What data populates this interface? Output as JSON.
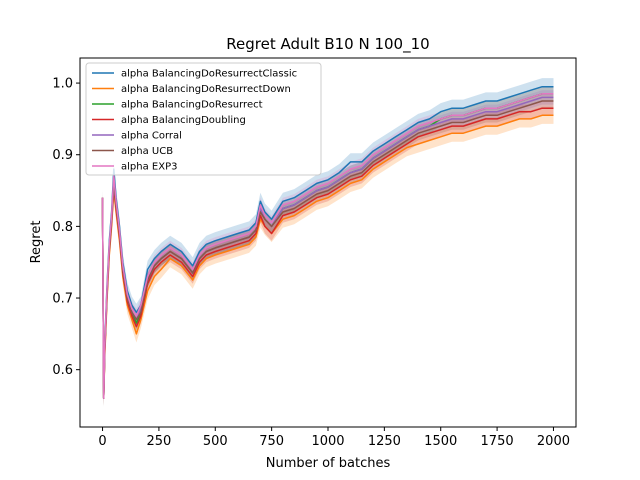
{
  "chart_data": {
    "type": "line",
    "title": "Regret Adult B10 N 100_10",
    "xlabel": "Number of batches",
    "ylabel": "Regret",
    "xlim": [
      -100,
      2100
    ],
    "ylim": [
      0.52,
      1.035
    ],
    "xticks": [
      0,
      250,
      500,
      750,
      1000,
      1250,
      1500,
      1750,
      2000
    ],
    "xtick_labels": [
      "0",
      "250",
      "500",
      "750",
      "1000",
      "1250",
      "1500",
      "1750",
      "2000"
    ],
    "yticks": [
      0.6,
      0.7,
      0.8,
      0.9,
      1.0
    ],
    "ytick_labels": [
      "0.6",
      "0.7",
      "0.8",
      "0.9",
      "1.0"
    ],
    "grid": false,
    "legend_position": "top-left",
    "shaded_bands": true,
    "x": [
      0,
      5,
      10,
      20,
      30,
      40,
      50,
      60,
      75,
      90,
      110,
      130,
      150,
      170,
      200,
      230,
      260,
      300,
      350,
      400,
      430,
      460,
      500,
      550,
      600,
      650,
      680,
      700,
      720,
      750,
      800,
      850,
      900,
      950,
      1000,
      1050,
      1100,
      1150,
      1200,
      1250,
      1300,
      1350,
      1400,
      1450,
      1500,
      1550,
      1600,
      1650,
      1700,
      1750,
      1800,
      1850,
      1900,
      1950,
      2000
    ],
    "series": [
      {
        "name": "alpha BalancingDoResurrectClassic",
        "color": "#1f77b4",
        "band": 0.012,
        "values": [
          0.84,
          0.56,
          0.64,
          0.72,
          0.78,
          0.82,
          0.88,
          0.84,
          0.8,
          0.75,
          0.71,
          0.69,
          0.68,
          0.69,
          0.74,
          0.755,
          0.765,
          0.775,
          0.765,
          0.745,
          0.765,
          0.775,
          0.78,
          0.785,
          0.79,
          0.795,
          0.805,
          0.835,
          0.82,
          0.81,
          0.835,
          0.84,
          0.85,
          0.86,
          0.865,
          0.875,
          0.89,
          0.89,
          0.905,
          0.915,
          0.925,
          0.935,
          0.945,
          0.95,
          0.96,
          0.965,
          0.965,
          0.97,
          0.975,
          0.975,
          0.98,
          0.985,
          0.99,
          0.995,
          0.995
        ]
      },
      {
        "name": "alpha BalancingDoResurrectDown",
        "color": "#ff7f0e",
        "band": 0.012,
        "values": [
          0.84,
          0.56,
          0.62,
          0.7,
          0.76,
          0.8,
          0.85,
          0.82,
          0.78,
          0.73,
          0.69,
          0.67,
          0.65,
          0.67,
          0.71,
          0.73,
          0.74,
          0.755,
          0.745,
          0.725,
          0.745,
          0.755,
          0.76,
          0.765,
          0.77,
          0.775,
          0.785,
          0.81,
          0.8,
          0.79,
          0.81,
          0.815,
          0.825,
          0.835,
          0.84,
          0.85,
          0.86,
          0.865,
          0.88,
          0.89,
          0.9,
          0.91,
          0.915,
          0.92,
          0.925,
          0.93,
          0.93,
          0.935,
          0.94,
          0.94,
          0.945,
          0.95,
          0.95,
          0.955,
          0.955
        ]
      },
      {
        "name": "alpha BalancingDoResurrect",
        "color": "#2ca02c",
        "band": 0.01,
        "values": [
          0.84,
          0.56,
          0.63,
          0.71,
          0.77,
          0.81,
          0.86,
          0.83,
          0.79,
          0.74,
          0.7,
          0.68,
          0.665,
          0.68,
          0.725,
          0.745,
          0.755,
          0.765,
          0.755,
          0.735,
          0.755,
          0.765,
          0.77,
          0.775,
          0.78,
          0.785,
          0.795,
          0.825,
          0.81,
          0.8,
          0.825,
          0.83,
          0.84,
          0.85,
          0.855,
          0.865,
          0.875,
          0.88,
          0.895,
          0.905,
          0.915,
          0.925,
          0.935,
          0.94,
          0.95,
          0.955,
          0.955,
          0.96,
          0.965,
          0.965,
          0.97,
          0.975,
          0.98,
          0.985,
          0.985
        ]
      },
      {
        "name": "alpha BalancingDoubling",
        "color": "#d62728",
        "band": 0.01,
        "values": [
          0.84,
          0.56,
          0.625,
          0.705,
          0.765,
          0.805,
          0.855,
          0.825,
          0.785,
          0.735,
          0.695,
          0.675,
          0.66,
          0.675,
          0.72,
          0.74,
          0.75,
          0.76,
          0.75,
          0.73,
          0.75,
          0.76,
          0.765,
          0.77,
          0.775,
          0.78,
          0.79,
          0.815,
          0.8,
          0.79,
          0.815,
          0.82,
          0.83,
          0.84,
          0.845,
          0.855,
          0.865,
          0.87,
          0.885,
          0.895,
          0.905,
          0.915,
          0.925,
          0.93,
          0.935,
          0.94,
          0.94,
          0.945,
          0.95,
          0.95,
          0.955,
          0.96,
          0.96,
          0.965,
          0.965
        ]
      },
      {
        "name": "alpha Corral",
        "color": "#9467bd",
        "band": 0.01,
        "values": [
          0.84,
          0.56,
          0.63,
          0.71,
          0.77,
          0.81,
          0.86,
          0.83,
          0.79,
          0.74,
          0.7,
          0.68,
          0.67,
          0.685,
          0.725,
          0.745,
          0.755,
          0.765,
          0.755,
          0.735,
          0.755,
          0.765,
          0.77,
          0.775,
          0.78,
          0.785,
          0.795,
          0.825,
          0.81,
          0.8,
          0.825,
          0.83,
          0.84,
          0.85,
          0.855,
          0.865,
          0.875,
          0.88,
          0.895,
          0.905,
          0.915,
          0.925,
          0.935,
          0.94,
          0.945,
          0.95,
          0.95,
          0.955,
          0.96,
          0.96,
          0.965,
          0.97,
          0.975,
          0.98,
          0.98
        ]
      },
      {
        "name": "alpha UCB",
        "color": "#8c564b",
        "band": 0.01,
        "values": [
          0.84,
          0.56,
          0.63,
          0.71,
          0.77,
          0.81,
          0.86,
          0.83,
          0.79,
          0.74,
          0.7,
          0.68,
          0.67,
          0.68,
          0.725,
          0.745,
          0.755,
          0.765,
          0.755,
          0.735,
          0.755,
          0.765,
          0.77,
          0.775,
          0.78,
          0.785,
          0.795,
          0.82,
          0.81,
          0.8,
          0.82,
          0.825,
          0.835,
          0.845,
          0.85,
          0.86,
          0.87,
          0.875,
          0.89,
          0.9,
          0.91,
          0.92,
          0.93,
          0.935,
          0.94,
          0.945,
          0.945,
          0.95,
          0.955,
          0.955,
          0.96,
          0.965,
          0.97,
          0.975,
          0.975
        ]
      },
      {
        "name": "alpha EXP3",
        "color": "#e377c2",
        "band": 0.01,
        "values": [
          0.84,
          0.56,
          0.635,
          0.715,
          0.775,
          0.815,
          0.87,
          0.835,
          0.795,
          0.745,
          0.705,
          0.685,
          0.675,
          0.69,
          0.73,
          0.75,
          0.76,
          0.77,
          0.76,
          0.74,
          0.76,
          0.77,
          0.775,
          0.78,
          0.785,
          0.79,
          0.8,
          0.83,
          0.815,
          0.805,
          0.83,
          0.835,
          0.845,
          0.855,
          0.86,
          0.87,
          0.88,
          0.885,
          0.9,
          0.91,
          0.92,
          0.93,
          0.94,
          0.945,
          0.95,
          0.955,
          0.955,
          0.96,
          0.965,
          0.965,
          0.97,
          0.975,
          0.98,
          0.985,
          0.985
        ]
      }
    ]
  }
}
